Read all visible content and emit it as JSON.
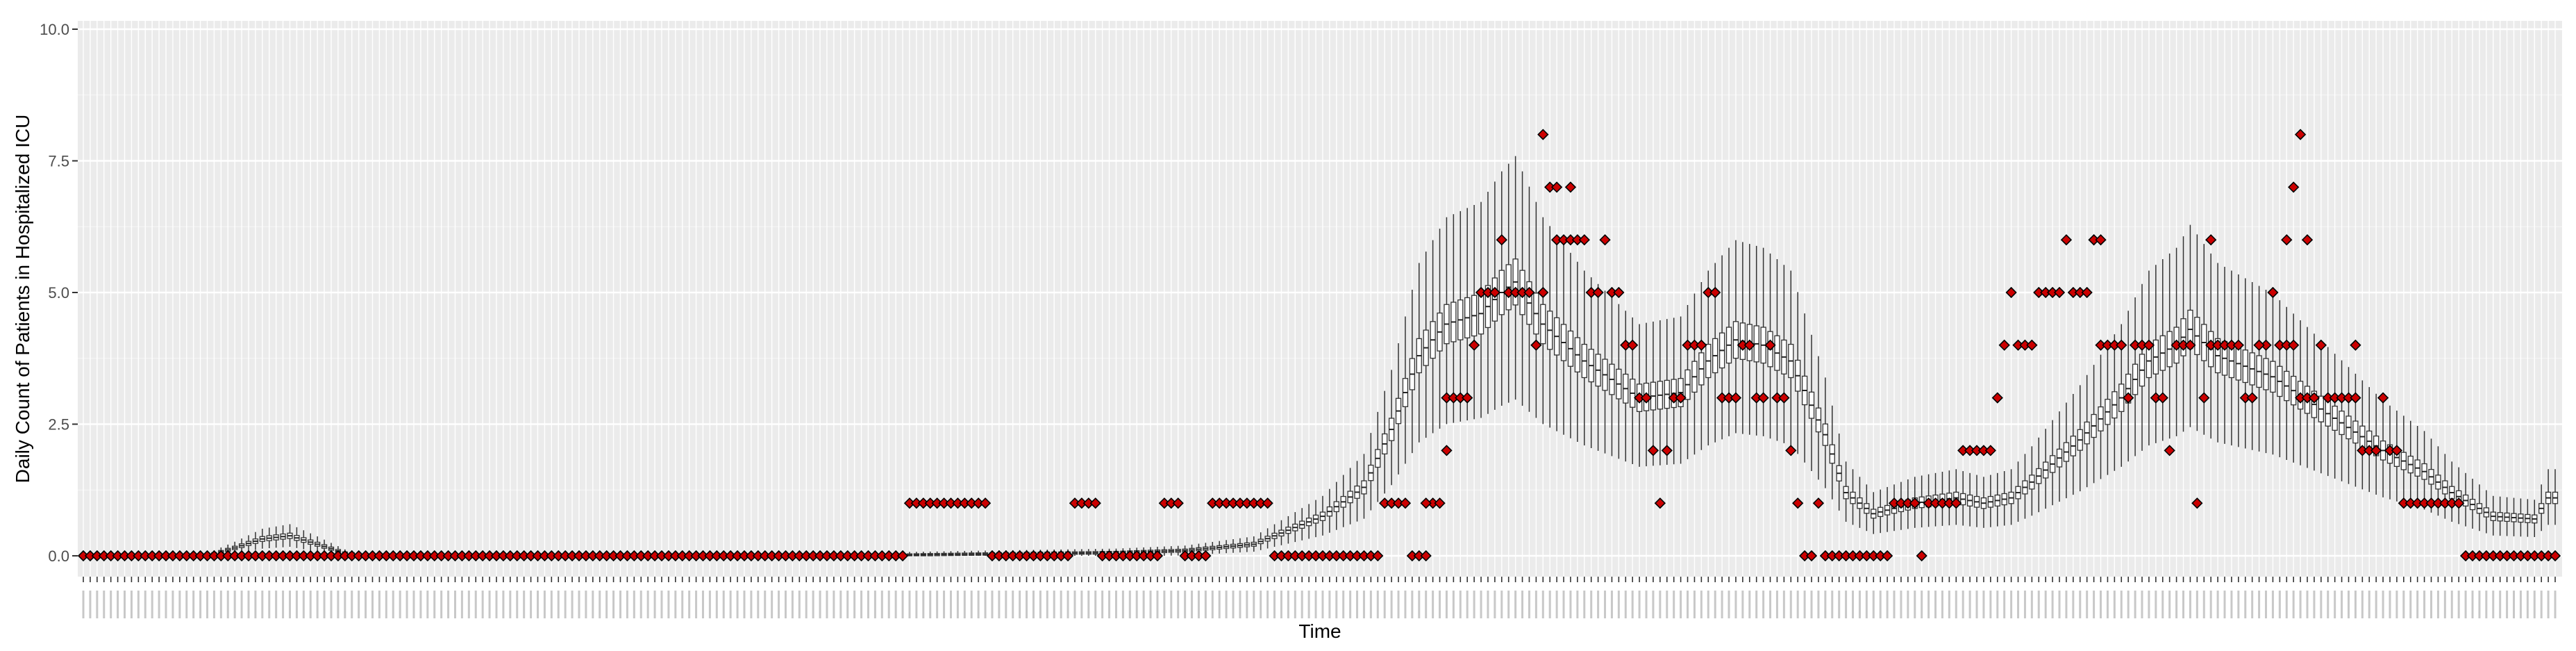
{
  "chart_data": {
    "type": "boxplot",
    "title": "",
    "xlabel": "Time",
    "ylabel": "Daily Count of Patients in Hospitalized ICU",
    "ylim": [
      0,
      10
    ],
    "yticks": [
      0,
      2.5,
      5,
      7.5,
      10
    ],
    "ytick_labels": [
      "0.0",
      "2.5",
      "5.0",
      "7.5",
      "10.0"
    ],
    "n_days": 360,
    "x_tick_labels_legible": false,
    "grid": true,
    "background": "#ebebeb",
    "box_color": "#333333",
    "observed_color": "#cc0000",
    "simulated_median_keyframes": [
      [
        0,
        0.0
      ],
      [
        18,
        0.0
      ],
      [
        22,
        0.15
      ],
      [
        26,
        0.32
      ],
      [
        30,
        0.38
      ],
      [
        34,
        0.22
      ],
      [
        38,
        0.05
      ],
      [
        42,
        0.0
      ],
      [
        110,
        0.0
      ],
      [
        128,
        0.03
      ],
      [
        150,
        0.06
      ],
      [
        160,
        0.1
      ],
      [
        170,
        0.22
      ],
      [
        180,
        0.75
      ],
      [
        186,
        1.3
      ],
      [
        190,
        2.4
      ],
      [
        194,
        3.8
      ],
      [
        198,
        4.4
      ],
      [
        203,
        4.6
      ],
      [
        206,
        5.0
      ],
      [
        208,
        5.2
      ],
      [
        212,
        4.4
      ],
      [
        218,
        3.7
      ],
      [
        226,
        3.0
      ],
      [
        232,
        3.1
      ],
      [
        236,
        3.7
      ],
      [
        240,
        4.1
      ],
      [
        244,
        4.0
      ],
      [
        248,
        3.7
      ],
      [
        253,
        2.3
      ],
      [
        256,
        1.2
      ],
      [
        260,
        0.8
      ],
      [
        266,
        1.0
      ],
      [
        272,
        1.1
      ],
      [
        276,
        1.0
      ],
      [
        280,
        1.1
      ],
      [
        283,
        1.4
      ],
      [
        290,
        2.2
      ],
      [
        296,
        3.0
      ],
      [
        300,
        3.7
      ],
      [
        304,
        4.0
      ],
      [
        306,
        4.3
      ],
      [
        310,
        3.8
      ],
      [
        318,
        3.4
      ],
      [
        326,
        2.7
      ],
      [
        334,
        2.0
      ],
      [
        340,
        1.6
      ],
      [
        344,
        1.2
      ],
      [
        350,
        0.75
      ],
      [
        356,
        0.7
      ],
      [
        358,
        1.1
      ],
      [
        359,
        1.1
      ]
    ],
    "observed_keyframes": [
      [
        0,
        0
      ],
      [
        119,
        0
      ],
      [
        120,
        1
      ],
      [
        131,
        1
      ],
      [
        132,
        0
      ],
      [
        143,
        0
      ],
      [
        144,
        1
      ],
      [
        147,
        1
      ],
      [
        148,
        0
      ],
      [
        156,
        0
      ],
      [
        157,
        1
      ],
      [
        159,
        1
      ],
      [
        160,
        0
      ],
      [
        163,
        0
      ],
      [
        164,
        1
      ],
      [
        172,
        1
      ],
      [
        173,
        0
      ],
      [
        188,
        0
      ],
      [
        189,
        1
      ],
      [
        192,
        1
      ],
      [
        193,
        0
      ],
      [
        195,
        0
      ],
      [
        196,
        1
      ],
      [
        197,
        1
      ],
      [
        198,
        3
      ],
      [
        202,
        4
      ],
      [
        203,
        5
      ],
      [
        206,
        6
      ],
      [
        207,
        5
      ],
      [
        210,
        5
      ],
      [
        211,
        4
      ],
      [
        212,
        5
      ],
      [
        213,
        7
      ],
      [
        214,
        6
      ],
      [
        218,
        6
      ],
      [
        219,
        5
      ],
      [
        221,
        6
      ],
      [
        222,
        5
      ],
      [
        224,
        4
      ],
      [
        226,
        3
      ],
      [
        228,
        2
      ],
      [
        229,
        1
      ],
      [
        230,
        2
      ],
      [
        231,
        3
      ],
      [
        233,
        4
      ],
      [
        236,
        5
      ],
      [
        238,
        3
      ],
      [
        240,
        3
      ],
      [
        241,
        4
      ],
      [
        243,
        3
      ],
      [
        245,
        4
      ],
      [
        246,
        3
      ],
      [
        248,
        2
      ],
      [
        249,
        1
      ],
      [
        250,
        0
      ],
      [
        251,
        0
      ],
      [
        252,
        1
      ],
      [
        253,
        0
      ],
      [
        262,
        0
      ],
      [
        263,
        1
      ],
      [
        266,
        1
      ],
      [
        267,
        0
      ],
      [
        268,
        1
      ],
      [
        272,
        1
      ],
      [
        273,
        2
      ],
      [
        277,
        2
      ],
      [
        278,
        3
      ],
      [
        279,
        4
      ],
      [
        280,
        5
      ],
      [
        281,
        4
      ],
      [
        283,
        4
      ],
      [
        284,
        5
      ],
      [
        287,
        5
      ],
      [
        288,
        6
      ],
      [
        289,
        5
      ],
      [
        292,
        6
      ],
      [
        293,
        4
      ],
      [
        297,
        3
      ],
      [
        298,
        4
      ],
      [
        301,
        3
      ],
      [
        303,
        2
      ],
      [
        304,
        4
      ],
      [
        306,
        4
      ],
      [
        307,
        1
      ],
      [
        308,
        3
      ],
      [
        309,
        4
      ],
      [
        313,
        4
      ],
      [
        314,
        3
      ],
      [
        316,
        4
      ],
      [
        318,
        5
      ],
      [
        319,
        4
      ],
      [
        322,
        3
      ],
      [
        324,
        3
      ],
      [
        325,
        4
      ],
      [
        326,
        3
      ],
      [
        330,
        3
      ],
      [
        331,
        2
      ],
      [
        334,
        3
      ],
      [
        335,
        2
      ],
      [
        337,
        1
      ],
      [
        342,
        1
      ],
      [
        345,
        1
      ],
      [
        346,
        0
      ],
      [
        359,
        0
      ]
    ],
    "observed_outliers": [
      [
        212,
        8
      ],
      [
        214,
        7
      ],
      [
        216,
        7
      ],
      [
        322,
        8
      ],
      [
        321,
        7
      ],
      [
        292,
        6
      ],
      [
        293,
        6
      ],
      [
        320,
        6
      ],
      [
        323,
        6
      ],
      [
        316,
        4
      ],
      [
        330,
        4
      ],
      [
        309,
        6
      ],
      [
        198,
        2
      ],
      [
        195,
        1
      ]
    ]
  }
}
